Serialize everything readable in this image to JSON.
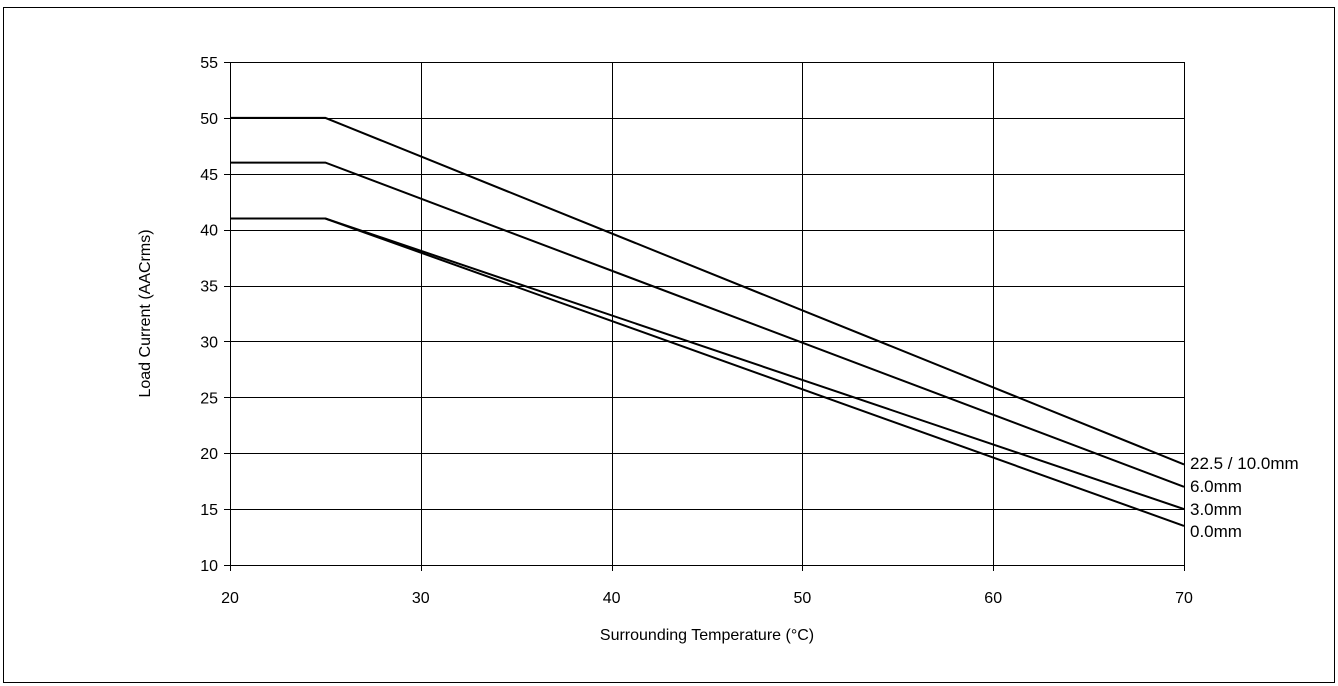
{
  "chart_data": {
    "type": "line",
    "title": "",
    "xlabel": "Surrounding Temperature (°C)",
    "ylabel": "Load Current (AACrms)",
    "xlim": [
      20,
      70
    ],
    "ylim": [
      10,
      55
    ],
    "xticks": [
      20,
      30,
      40,
      50,
      60,
      70
    ],
    "yticks": [
      10,
      15,
      20,
      25,
      30,
      35,
      40,
      45,
      50,
      55
    ],
    "grid": true,
    "legend": "inline labels at right end of lines",
    "series": [
      {
        "name": "22.5 / 10.0mm",
        "x": [
          20,
          25,
          70
        ],
        "y": [
          50,
          50,
          19
        ]
      },
      {
        "name": "6.0mm",
        "x": [
          20,
          25,
          70
        ],
        "y": [
          46,
          46,
          17
        ]
      },
      {
        "name": "3.0mm",
        "x": [
          20,
          25,
          70
        ],
        "y": [
          41,
          41,
          15
        ]
      },
      {
        "name": "0.0mm",
        "x": [
          20,
          25,
          70
        ],
        "y": [
          41,
          41,
          13.5
        ]
      }
    ]
  }
}
